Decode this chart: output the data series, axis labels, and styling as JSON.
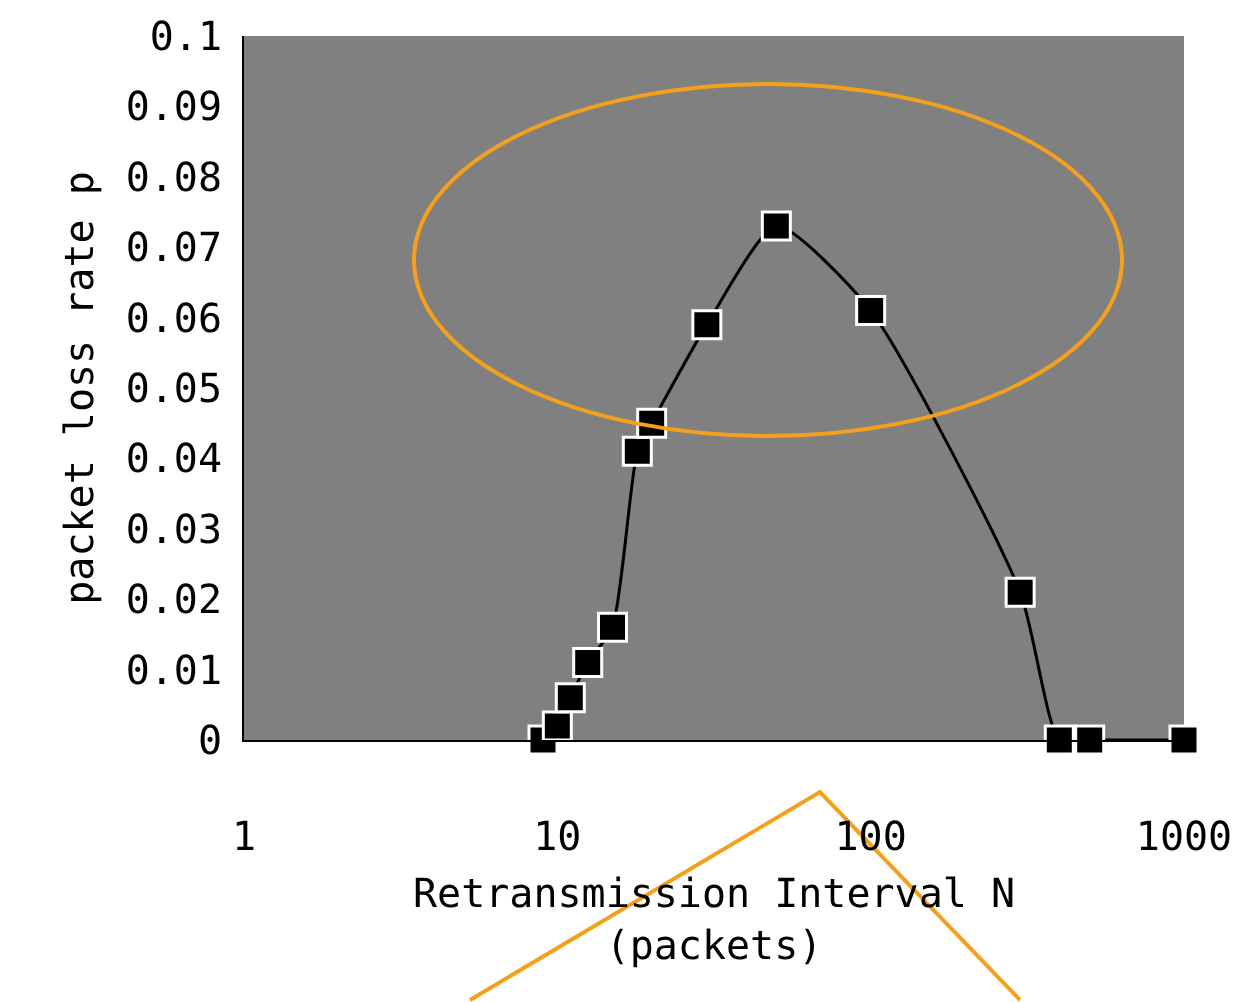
{
  "chart_data": {
    "type": "line",
    "xlabel": "Retransmission Interval N\n(packets)",
    "ylabel": "packet loss rate p",
    "x": [
      9,
      10,
      11,
      12.5,
      15,
      18,
      20,
      30,
      50,
      100,
      300,
      400,
      500,
      1000
    ],
    "series": [
      {
        "color": "#000000",
        "values": [
          0,
          0.002,
          0.006,
          0.011,
          0.016,
          0.041,
          0.045,
          0.059,
          0.073,
          0.061,
          0.021,
          0,
          0,
          0
        ]
      }
    ],
    "log": "x",
    "xlim": [
      1,
      1000
    ],
    "xticks": [
      1,
      10,
      100,
      1000
    ],
    "ylim": [
      0,
      0.1
    ],
    "yticks": [
      0,
      0.01,
      0.02,
      0.03,
      0.04,
      0.05,
      0.06,
      0.07,
      0.08,
      0.09,
      0.1
    ],
    "marker": "square",
    "line_style": "solid"
  }
}
